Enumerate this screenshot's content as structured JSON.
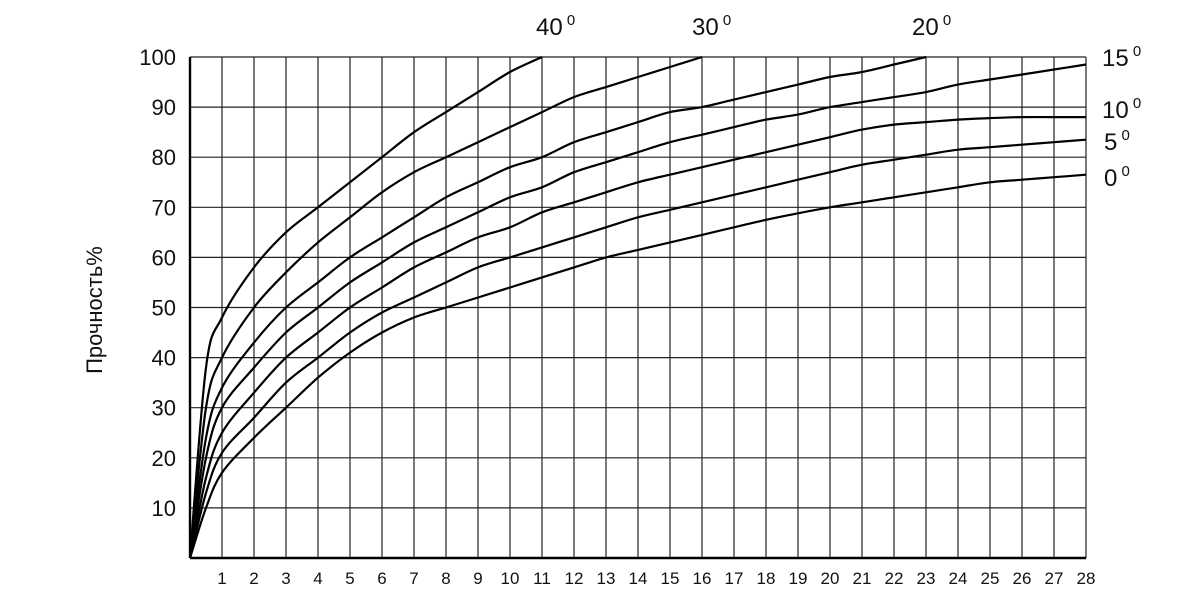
{
  "chart_data": {
    "type": "line",
    "title": "",
    "xlabel": "",
    "ylabel": "Прочность%",
    "xlim": [
      0,
      28
    ],
    "ylim": [
      0,
      100
    ],
    "x_ticks": [
      1,
      2,
      3,
      4,
      5,
      6,
      7,
      8,
      9,
      10,
      11,
      12,
      13,
      14,
      15,
      16,
      17,
      18,
      19,
      20,
      21,
      22,
      23,
      24,
      25,
      26,
      27,
      28
    ],
    "y_ticks": [
      10,
      20,
      30,
      40,
      50,
      60,
      70,
      80,
      90,
      100
    ],
    "grid": true,
    "legend": "none",
    "series": [
      {
        "name": "40",
        "x": [
          0,
          0.5,
          1,
          2,
          3,
          4,
          5,
          6,
          7,
          8,
          9,
          10,
          11
        ],
        "y": [
          0,
          38,
          48,
          58,
          65,
          70,
          75,
          80,
          85,
          89,
          93,
          97,
          100
        ]
      },
      {
        "name": "30",
        "x": [
          0,
          0.5,
          1,
          2,
          3,
          4,
          5,
          6,
          7,
          8,
          9,
          10,
          11,
          12,
          13,
          14,
          15,
          16
        ],
        "y": [
          0,
          30,
          40,
          50,
          57,
          63,
          68,
          73,
          77,
          80,
          83,
          86,
          89,
          92,
          94,
          96,
          98,
          100
        ]
      },
      {
        "name": "20",
        "x": [
          0,
          0.5,
          1,
          2,
          3,
          4,
          5,
          6,
          7,
          8,
          9,
          10,
          11,
          12,
          13,
          14,
          15,
          16,
          17,
          18,
          19,
          20,
          21,
          22,
          23
        ],
        "y": [
          0,
          24,
          34,
          43,
          50,
          55,
          60,
          64,
          68,
          72,
          75,
          78,
          80,
          83,
          85,
          87,
          89,
          90,
          91.5,
          93,
          94.5,
          96,
          97,
          98.5,
          100
        ]
      },
      {
        "name": "15",
        "x": [
          0,
          0.5,
          1,
          2,
          3,
          4,
          5,
          6,
          7,
          8,
          9,
          10,
          11,
          12,
          13,
          14,
          15,
          16,
          17,
          18,
          19,
          20,
          21,
          22,
          23,
          24,
          25,
          26,
          27,
          28
        ],
        "y": [
          0,
          20,
          30,
          38,
          45,
          50,
          55,
          59,
          63,
          66,
          69,
          72,
          74,
          77,
          79,
          81,
          83,
          84.5,
          86,
          87.5,
          88.5,
          90,
          91,
          92,
          93,
          94.5,
          95.5,
          96.5,
          97.5,
          98.5
        ]
      },
      {
        "name": "10",
        "x": [
          0,
          0.5,
          1,
          2,
          3,
          4,
          5,
          6,
          7,
          8,
          9,
          10,
          11,
          12,
          13,
          14,
          15,
          16,
          17,
          18,
          19,
          20,
          21,
          22,
          23,
          24,
          25,
          26,
          27,
          28
        ],
        "y": [
          0,
          16,
          25,
          33,
          40,
          45,
          50,
          54,
          58,
          61,
          64,
          66,
          69,
          71,
          73,
          75,
          76.5,
          78,
          79.5,
          81,
          82.5,
          84,
          85.5,
          86.5,
          87,
          87.5,
          87.8,
          88,
          88,
          88
        ]
      },
      {
        "name": "5",
        "x": [
          0,
          0.5,
          1,
          2,
          3,
          4,
          5,
          6,
          7,
          8,
          9,
          10,
          11,
          12,
          13,
          14,
          15,
          16,
          17,
          18,
          19,
          20,
          21,
          22,
          23,
          24,
          25,
          26,
          27,
          28
        ],
        "y": [
          0,
          13,
          21,
          28,
          35,
          40,
          45,
          49,
          52,
          55,
          58,
          60,
          62,
          64,
          66,
          68,
          69.5,
          71,
          72.5,
          74,
          75.5,
          77,
          78.5,
          79.5,
          80.5,
          81.5,
          82,
          82.5,
          83,
          83.5
        ]
      },
      {
        "name": "0",
        "x": [
          0,
          0.5,
          1,
          2,
          3,
          4,
          5,
          6,
          7,
          8,
          9,
          10,
          11,
          12,
          13,
          14,
          15,
          16,
          17,
          18,
          19,
          20,
          21,
          22,
          23,
          24,
          25,
          26,
          27,
          28
        ],
        "y": [
          0,
          10,
          17,
          24,
          30,
          36,
          41,
          45,
          48,
          50,
          52,
          54,
          56,
          58,
          60,
          61.5,
          63,
          64.5,
          66,
          67.5,
          68.8,
          70,
          71,
          72,
          73,
          74,
          75,
          75.5,
          76,
          76.5
        ]
      }
    ]
  },
  "curve_labels": [
    {
      "series": "40",
      "text": "40",
      "sup": "0"
    },
    {
      "series": "30",
      "text": "30",
      "sup": "0"
    },
    {
      "series": "20",
      "text": "20",
      "sup": "0"
    },
    {
      "series": "15",
      "text": "15",
      "sup": "0"
    },
    {
      "series": "10",
      "text": "10",
      "sup": "0"
    },
    {
      "series": "5",
      "text": "5",
      "sup": "0"
    },
    {
      "series": "0",
      "text": "0",
      "sup": "0"
    }
  ]
}
